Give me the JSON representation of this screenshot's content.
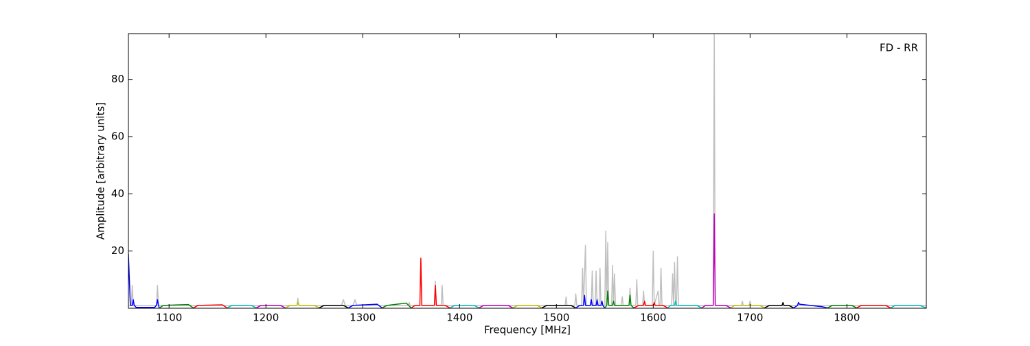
{
  "chart_data": {
    "type": "line",
    "annotation": "FD - RR",
    "x_label": "Frequency [MHz]",
    "y_label": "Amplitude [arbitrary units]",
    "xlim": [
      1058,
      1882
    ],
    "ylim": [
      0,
      96
    ],
    "xticks": [
      1100,
      1200,
      1300,
      1400,
      1500,
      1600,
      1700,
      1800
    ],
    "yticks": [
      20,
      40,
      60,
      80
    ],
    "grid": false,
    "series": [
      {
        "color": "#bfbfbf",
        "x": [
          1058,
          1061,
          1062,
          1063,
          1087,
          1088,
          1089,
          1232,
          1233,
          1234,
          1278,
          1280,
          1282,
          1290,
          1292,
          1294,
          1347,
          1348,
          1349,
          1374,
          1375,
          1376,
          1381,
          1382,
          1383,
          1509,
          1510,
          1511,
          1519,
          1520,
          1521,
          1526,
          1527,
          1528,
          1530,
          1531,
          1536,
          1537,
          1538,
          1540,
          1541,
          1542,
          1544,
          1545,
          1546,
          1550,
          1551,
          1552,
          1553,
          1554,
          1557,
          1558,
          1559,
          1560,
          1561,
          1567,
          1568,
          1569,
          1575,
          1576,
          1577,
          1582,
          1583,
          1584,
          1589,
          1590,
          1591,
          1599,
          1600,
          1601,
          1605,
          1606,
          1607,
          1608,
          1609,
          1619,
          1620,
          1621,
          1622,
          1623,
          1624,
          1625,
          1626,
          1662,
          1663,
          1664,
          1691,
          1692,
          1693,
          1699,
          1700,
          1701,
          1882
        ],
        "values": [
          1,
          1,
          8,
          1,
          1,
          8,
          1,
          1,
          3.5,
          1,
          1,
          3,
          1,
          1,
          3,
          1,
          1,
          2,
          1,
          1,
          9.5,
          1,
          1,
          8,
          1,
          1,
          4,
          1,
          1,
          5,
          1,
          1,
          14,
          1,
          22,
          1,
          1,
          13,
          1,
          1,
          13,
          1,
          1,
          14,
          1,
          1,
          27,
          1,
          23,
          1,
          1,
          15,
          1,
          12,
          1,
          1,
          4,
          1,
          1,
          7,
          1,
          1,
          10,
          1,
          1,
          6,
          1,
          1,
          20,
          1,
          6,
          1,
          1,
          14,
          1,
          1,
          12,
          1,
          16,
          1,
          1,
          18,
          1,
          1,
          96,
          1,
          1,
          2.5,
          1,
          1,
          2.5,
          1,
          1
        ]
      },
      {
        "color": "#0000ff",
        "x": [
          1058,
          1060,
          1062,
          1063,
          1064,
          1066,
          1085,
          1087,
          1088,
          1089,
          1090
        ],
        "values": [
          19,
          1,
          1,
          3,
          1,
          0.3,
          0.3,
          1,
          3,
          1,
          0.1
        ]
      },
      {
        "color": "#008000",
        "x": [
          1090,
          1094,
          1120,
          1125
        ],
        "values": [
          0.1,
          1,
          1.3,
          0.1
        ]
      },
      {
        "color": "#ff0000",
        "x": [
          1125,
          1130,
          1155,
          1160
        ],
        "values": [
          0.1,
          1,
          1.2,
          0.1
        ]
      },
      {
        "color": "#00bfbf",
        "x": [
          1160,
          1165,
          1185,
          1190
        ],
        "values": [
          0.1,
          1,
          1,
          0.1
        ]
      },
      {
        "color": "#bf00bf",
        "x": [
          1190,
          1195,
          1215,
          1220
        ],
        "values": [
          0.1,
          1,
          1,
          0.1
        ]
      },
      {
        "color": "#bfbf00",
        "x": [
          1220,
          1225,
          1232,
          1233,
          1234,
          1250,
          1255
        ],
        "values": [
          0.1,
          1,
          1,
          2,
          1,
          1,
          0.1
        ]
      },
      {
        "color": "#000000",
        "x": [
          1255,
          1260,
          1280,
          1285
        ],
        "values": [
          0.1,
          1,
          1,
          0.1
        ]
      },
      {
        "color": "#0000ff",
        "x": [
          1285,
          1290,
          1315,
          1320
        ],
        "values": [
          0.1,
          1,
          1.4,
          0.1
        ]
      },
      {
        "color": "#008000",
        "x": [
          1320,
          1325,
          1345,
          1350
        ],
        "values": [
          0.1,
          1,
          1.8,
          0.1
        ]
      },
      {
        "color": "#ff0000",
        "x": [
          1350,
          1354,
          1359,
          1360,
          1361,
          1374,
          1375,
          1376,
          1385,
          1390
        ],
        "values": [
          0.1,
          1,
          1,
          17.5,
          1,
          1,
          8,
          1,
          1,
          0.1
        ]
      },
      {
        "color": "#00bfbf",
        "x": [
          1390,
          1395,
          1415,
          1420
        ],
        "values": [
          0.1,
          1,
          1,
          0.1
        ]
      },
      {
        "color": "#bf00bf",
        "x": [
          1420,
          1425,
          1450,
          1455
        ],
        "values": [
          0.1,
          1,
          1,
          0.1
        ]
      },
      {
        "color": "#bfbf00",
        "x": [
          1455,
          1460,
          1480,
          1485
        ],
        "values": [
          0.1,
          1,
          1,
          0.1
        ]
      },
      {
        "color": "#000000",
        "x": [
          1485,
          1490,
          1515,
          1520
        ],
        "values": [
          0.1,
          1,
          1,
          0.1
        ]
      },
      {
        "color": "#0000ff",
        "x": [
          1520,
          1524,
          1528,
          1529,
          1530,
          1535,
          1536,
          1537,
          1541,
          1542,
          1543,
          1546,
          1547,
          1548,
          1550
        ],
        "values": [
          0.1,
          1,
          1,
          4.5,
          1,
          1,
          3,
          1,
          1,
          3,
          1,
          1,
          2.5,
          1,
          0.1
        ]
      },
      {
        "color": "#008000",
        "x": [
          1550,
          1552,
          1553,
          1554,
          1558,
          1559,
          1560,
          1570,
          1575,
          1576,
          1577,
          1580
        ],
        "values": [
          0.1,
          1,
          6,
          1,
          1,
          2.5,
          1,
          1,
          1,
          4.5,
          1,
          0.1
        ]
      },
      {
        "color": "#ff0000",
        "x": [
          1580,
          1585,
          1590,
          1591,
          1592,
          1600,
          1601,
          1602,
          1610,
          1615
        ],
        "values": [
          0.1,
          1,
          1,
          2.5,
          1,
          1,
          2,
          1,
          1,
          0.1
        ]
      },
      {
        "color": "#00bfbf",
        "x": [
          1615,
          1618,
          1622,
          1623,
          1624,
          1645,
          1650
        ],
        "values": [
          0.1,
          1,
          1,
          2.5,
          1,
          1,
          0.1
        ]
      },
      {
        "color": "#bf00bf",
        "x": [
          1650,
          1654,
          1662,
          1663,
          1664,
          1675,
          1680
        ],
        "values": [
          0.1,
          1,
          1,
          33,
          1,
          1,
          0.1
        ]
      },
      {
        "color": "#bfbf00",
        "x": [
          1680,
          1684,
          1710,
          1715
        ],
        "values": [
          0.1,
          1,
          1,
          0.1
        ]
      },
      {
        "color": "#000000",
        "x": [
          1715,
          1720,
          1733,
          1734,
          1735,
          1740,
          1745
        ],
        "values": [
          0.1,
          1,
          1,
          2,
          1,
          1,
          0.1
        ]
      },
      {
        "color": "#0000ff",
        "x": [
          1745,
          1749,
          1750,
          1751,
          1775,
          1780
        ],
        "values": [
          0.1,
          1,
          2,
          1.4,
          0.5,
          0.1
        ]
      },
      {
        "color": "#008000",
        "x": [
          1780,
          1785,
          1805,
          1810
        ],
        "values": [
          0.1,
          1,
          1,
          0.1
        ]
      },
      {
        "color": "#ff0000",
        "x": [
          1810,
          1815,
          1840,
          1845
        ],
        "values": [
          0.1,
          1,
          1,
          0.1
        ]
      },
      {
        "color": "#00bfbf",
        "x": [
          1845,
          1850,
          1875,
          1882
        ],
        "values": [
          0.1,
          1,
          1,
          0.1
        ]
      }
    ]
  }
}
